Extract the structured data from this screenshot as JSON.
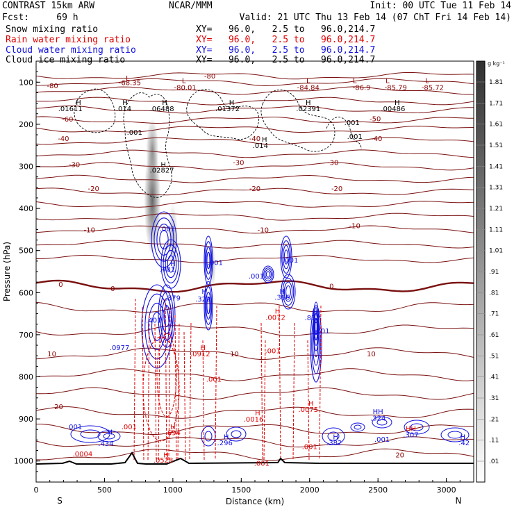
{
  "header": {
    "left1": "CONTRAST 15km ARW",
    "center1": "NCAR/MMM",
    "right1": "Init: 00 UTC Tue 11 Feb 14",
    "left2": "Fcst:     69 h",
    "right2": "Valid: 21 UTC Thu 13 Feb 14 (07 ChT Fri 14 Feb 14)"
  },
  "legend": [
    {
      "name": "Snow mixing ratio",
      "xy": "XY=   96.0,   2.5 to   96.0,214.7",
      "color": "#000000"
    },
    {
      "name": "Rain water mixing ratio",
      "xy": "XY=   96.0,   2.5 to   96.0,214.7",
      "color": "#e00000"
    },
    {
      "name": "Cloud water mixing ratio",
      "xy": "XY=   96.0,   2.5 to   96.0,214.7",
      "color": "#1010e0"
    },
    {
      "name": "Cloud ice mixing ratio",
      "xy": "XY=   96.0,   2.5 to   96.0,214.7",
      "color": "#000000"
    }
  ],
  "chart_data": {
    "type": "heatmap",
    "xlabel": "Distance (km)",
    "ylabel": "Pressure (hPa)",
    "xlim": [
      0,
      3200
    ],
    "ylim": [
      1050,
      50
    ],
    "x_ticks": [
      0,
      500,
      1000,
      1500,
      2000,
      2500,
      3000
    ],
    "y_ticks": [
      100,
      200,
      300,
      400,
      500,
      600,
      700,
      800,
      900,
      1000
    ],
    "x_end_labels": {
      "left": "S",
      "right": "N"
    },
    "colorbar": {
      "unit": "g kg⁻¹",
      "levels": [
        ".01",
        ".11",
        ".21",
        ".31",
        ".41",
        ".51",
        ".61",
        ".71",
        ".81",
        ".91",
        "1.01",
        "1.11",
        "1.21",
        "1.31",
        "1.41",
        "1.51",
        "1.61",
        "1.71",
        "1.81"
      ]
    },
    "temperature_labels": [
      {
        "text": "-68.35",
        "x": 685,
        "p": 100
      },
      {
        "text": "-80",
        "x": 120,
        "p": 108
      },
      {
        "text": "-80",
        "x": 1270,
        "p": 85
      },
      {
        "text": "-80.01",
        "x": 1090,
        "p": 112
      },
      {
        "text": "-84.84",
        "x": 1990,
        "p": 112
      },
      {
        "text": "-86.9",
        "x": 2380,
        "p": 112
      },
      {
        "text": "-85.79",
        "x": 2630,
        "p": 112
      },
      {
        "text": "-85.72",
        "x": 2900,
        "p": 112
      },
      {
        "text": "-60",
        "x": 230,
        "p": 187
      },
      {
        "text": "-50",
        "x": 2480,
        "p": 186
      },
      {
        "text": "-40",
        "x": 200,
        "p": 233
      },
      {
        "text": "-40",
        "x": 1600,
        "p": 233
      },
      {
        "text": "-40",
        "x": 2490,
        "p": 233
      },
      {
        "text": "-30",
        "x": 280,
        "p": 295
      },
      {
        "text": "-30",
        "x": 1480,
        "p": 290
      },
      {
        "text": "-30",
        "x": 2170,
        "p": 290
      },
      {
        "text": "-20",
        "x": 420,
        "p": 352
      },
      {
        "text": "-20",
        "x": 1600,
        "p": 352
      },
      {
        "text": "-20",
        "x": 2200,
        "p": 352
      },
      {
        "text": "-10",
        "x": 390,
        "p": 450
      },
      {
        "text": "-10",
        "x": 1660,
        "p": 450
      },
      {
        "text": "-10",
        "x": 2330,
        "p": 440
      },
      {
        "text": "0",
        "x": 180,
        "p": 580
      },
      {
        "text": "0",
        "x": 560,
        "p": 590
      },
      {
        "text": "0",
        "x": 2160,
        "p": 584
      },
      {
        "text": "10",
        "x": 115,
        "p": 745
      },
      {
        "text": "10",
        "x": 1450,
        "p": 745
      },
      {
        "text": "10",
        "x": 2450,
        "p": 745
      },
      {
        "text": "20",
        "x": 165,
        "p": 870
      },
      {
        "text": "20",
        "x": 2660,
        "p": 985
      }
    ],
    "extrema_labels": [
      {
        "text": "L",
        "x": 670,
        "p": 90,
        "color": "#8b0000"
      },
      {
        "text": "L",
        "x": 1080,
        "p": 95,
        "color": "#8b0000"
      },
      {
        "text": "L",
        "x": 1990,
        "p": 95,
        "color": "#8b0000"
      },
      {
        "text": "L",
        "x": 2330,
        "p": 95,
        "color": "#8b0000"
      },
      {
        "text": "L",
        "x": 2570,
        "p": 95,
        "color": "#8b0000"
      },
      {
        "text": "L",
        "x": 2860,
        "p": 95,
        "color": "#8b0000"
      },
      {
        "text": "H",
        "x": 310,
        "p": 147,
        "color": "#000000"
      },
      {
        "text": ".01611",
        "x": 250,
        "p": 162,
        "color": "#000000"
      },
      {
        "text": "H",
        "x": 650,
        "p": 147,
        "color": "#000000"
      },
      {
        "text": ".014",
        "x": 640,
        "p": 162,
        "color": "#000000"
      },
      {
        "text": "H",
        "x": 940,
        "p": 147,
        "color": "#000000"
      },
      {
        "text": ".06488",
        "x": 920,
        "p": 162,
        "color": "#000000"
      },
      {
        "text": "H",
        "x": 1430,
        "p": 147,
        "color": "#000000"
      },
      {
        "text": ".01372",
        "x": 1400,
        "p": 162,
        "color": "#000000"
      },
      {
        "text": "H",
        "x": 1990,
        "p": 147,
        "color": "#000000"
      },
      {
        "text": ".02391",
        "x": 1990,
        "p": 162,
        "color": "#000000"
      },
      {
        "text": "H",
        "x": 2640,
        "p": 147,
        "color": "#000000"
      },
      {
        "text": ".00486",
        "x": 2610,
        "p": 162,
        "color": "#000000"
      },
      {
        "text": ".001",
        "x": 2310,
        "p": 195,
        "color": "#000000"
      },
      {
        "text": ".001",
        "x": 720,
        "p": 218,
        "color": "#000000"
      },
      {
        "text": ".001",
        "x": 2330,
        "p": 228,
        "color": "#000000"
      },
      {
        "text": "H",
        "x": 1670,
        "p": 235,
        "color": "#000000"
      },
      {
        "text": ".014",
        "x": 1640,
        "p": 250,
        "color": "#000000"
      },
      {
        "text": "H",
        "x": 930,
        "p": 295,
        "color": "#000000"
      },
      {
        "text": ".02827",
        "x": 920,
        "p": 308,
        "color": "#000000"
      },
      {
        "text": ".001",
        "x": 960,
        "p": 448,
        "color": "#1010e0"
      },
      {
        "text": ".001",
        "x": 1310,
        "p": 528,
        "color": "#1010e0"
      },
      {
        "text": ".001",
        "x": 1860,
        "p": 522,
        "color": "#1010e0"
      },
      {
        "text": ".001",
        "x": 1610,
        "p": 560,
        "color": "#1010e0"
      },
      {
        "text": "H",
        "x": 1000,
        "p": 530,
        "color": "#1010e0"
      },
      {
        "text": ".401",
        "x": 960,
        "p": 543,
        "color": "#1010e0"
      },
      {
        "text": "H",
        "x": 1230,
        "p": 596,
        "color": "#1010e0"
      },
      {
        "text": ".322",
        "x": 1220,
        "p": 614,
        "color": "#1010e0"
      },
      {
        "text": "H",
        "x": 1800,
        "p": 596,
        "color": "#1010e0"
      },
      {
        "text": ".386",
        "x": 1800,
        "p": 610,
        "color": "#1010e0"
      },
      {
        "text": ".379",
        "x": 1000,
        "p": 612,
        "color": "#1010e0"
      },
      {
        "text": "H",
        "x": 1765,
        "p": 643,
        "color": "#e00000"
      },
      {
        "text": ".0072",
        "x": 1750,
        "p": 658,
        "color": "#e00000"
      },
      {
        "text": "H",
        "x": 2040,
        "p": 645,
        "color": "#1010e0"
      },
      {
        "text": ".832",
        "x": 2020,
        "p": 659,
        "color": "#1010e0"
      },
      {
        "text": ".401",
        "x": 860,
        "p": 665,
        "color": "#1010e0"
      },
      {
        "text": ".001",
        "x": 2090,
        "p": 690,
        "color": "#1010e0"
      },
      {
        "text": ".0977",
        "x": 610,
        "p": 730,
        "color": "#1010e0"
      },
      {
        "text": "H",
        "x": 1220,
        "p": 730,
        "color": "#e00000"
      },
      {
        "text": ".0912",
        "x": 1200,
        "p": 745,
        "color": "#e00000"
      },
      {
        "text": ".001",
        "x": 1730,
        "p": 737,
        "color": "#e00000"
      },
      {
        "text": ".001",
        "x": 1300,
        "p": 805,
        "color": "#e00000"
      },
      {
        "text": "H",
        "x": 2010,
        "p": 862,
        "color": "#e00000"
      },
      {
        "text": ".0075",
        "x": 1990,
        "p": 877,
        "color": "#e00000"
      },
      {
        "text": "H",
        "x": 1620,
        "p": 885,
        "color": "#e00000"
      },
      {
        "text": ".0016",
        "x": 1590,
        "p": 900,
        "color": "#e00000"
      },
      {
        "text": "HH",
        "x": 2500,
        "p": 882,
        "color": "#1010e0"
      },
      {
        "text": ".324",
        "x": 2500,
        "p": 897,
        "color": "#1010e0"
      },
      {
        "text": "HH",
        "x": 2740,
        "p": 922,
        "color": "#e00000"
      },
      {
        "text": ".307",
        "x": 2740,
        "p": 937,
        "color": "#1010e0"
      },
      {
        "text": ".001",
        "x": 280,
        "p": 918,
        "color": "#1010e0"
      },
      {
        "text": ".001",
        "x": 680,
        "p": 918,
        "color": "#e00000"
      },
      {
        "text": "H",
        "x": 540,
        "p": 930,
        "color": "#1010e0"
      },
      {
        "text": ".434",
        "x": 510,
        "p": 958,
        "color": "#1010e0"
      },
      {
        "text": ".0004",
        "x": 340,
        "p": 982,
        "color": "#e00000"
      },
      {
        "text": "H",
        "x": 1000,
        "p": 918,
        "color": "#e00000"
      },
      {
        "text": ".694",
        "x": 1000,
        "p": 932,
        "color": "#e00000"
      },
      {
        "text": "H",
        "x": 1390,
        "p": 942,
        "color": "#1010e0"
      },
      {
        "text": ".296",
        "x": 1380,
        "p": 956,
        "color": "#1010e0"
      },
      {
        "text": "H",
        "x": 2190,
        "p": 942,
        "color": "#1010e0"
      },
      {
        "text": ".382",
        "x": 2180,
        "p": 956,
        "color": "#1010e0"
      },
      {
        "text": ".001",
        "x": 2530,
        "p": 948,
        "color": "#1010e0"
      },
      {
        "text": ".001",
        "x": 2000,
        "p": 965,
        "color": "#e00000"
      },
      {
        "text": "H",
        "x": 3120,
        "p": 942,
        "color": "#1010e0"
      },
      {
        "text": ".42",
        "x": 3130,
        "p": 956,
        "color": "#1010e0"
      },
      {
        "text": "H",
        "x": 950,
        "p": 985,
        "color": "#e00000"
      },
      {
        "text": ".0528",
        "x": 930,
        "p": 997,
        "color": "#e00000"
      },
      {
        "text": ".001",
        "x": 1650,
        "p": 1005,
        "color": "#e00000"
      }
    ]
  }
}
